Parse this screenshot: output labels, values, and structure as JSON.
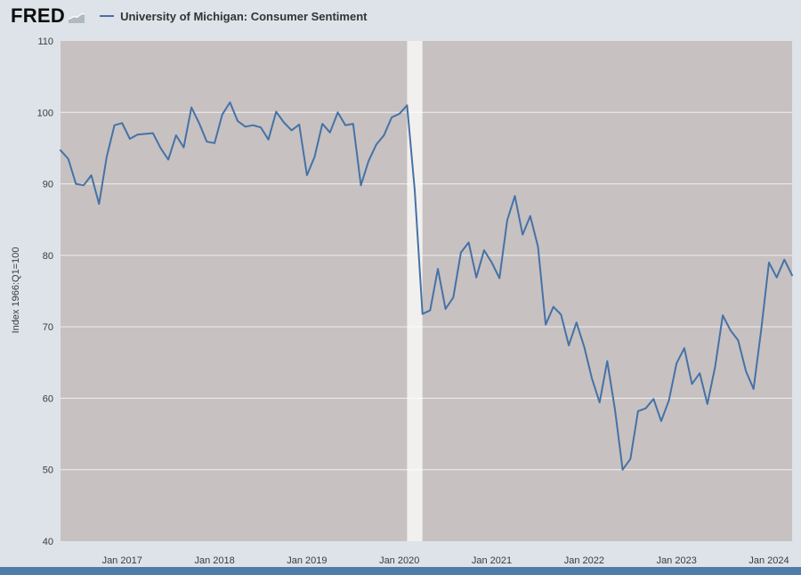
{
  "header": {
    "logo_text": "FRED",
    "legend": {
      "series_label": "University of Michigan: Consumer Sentiment"
    }
  },
  "chart_data": {
    "type": "line",
    "title": "University of Michigan: Consumer Sentiment",
    "xlabel": "",
    "ylabel": "Index 1966:Q1=100",
    "ylim": [
      40,
      110
    ],
    "yticks": [
      40,
      50,
      60,
      70,
      80,
      90,
      100,
      110
    ],
    "grid": "horizontal white gridlines on gray plot background",
    "legend_position": "top-left header",
    "frequency": "monthly",
    "start_month": "2016-05",
    "xticks": [
      {
        "label": "Jan 2017",
        "month": "2017-01"
      },
      {
        "label": "Jan 2018",
        "month": "2018-01"
      },
      {
        "label": "Jan 2019",
        "month": "2019-01"
      },
      {
        "label": "Jan 2020",
        "month": "2020-01"
      },
      {
        "label": "Jan 2021",
        "month": "2021-01"
      },
      {
        "label": "Jan 2022",
        "month": "2022-01"
      },
      {
        "label": "Jan 2023",
        "month": "2023-01"
      },
      {
        "label": "Jan 2024",
        "month": "2024-01"
      }
    ],
    "recession_bands": [
      {
        "from": "2020-02",
        "to": "2020-04"
      }
    ],
    "series": [
      {
        "name": "University of Michigan: Consumer Sentiment",
        "values": [
          94.7,
          93.5,
          90.0,
          89.8,
          91.2,
          87.2,
          93.8,
          98.2,
          98.5,
          96.3,
          96.9,
          97.0,
          97.1,
          95.0,
          93.4,
          96.8,
          95.1,
          100.7,
          98.5,
          95.9,
          95.7,
          99.7,
          101.4,
          98.8,
          98.0,
          98.2,
          97.9,
          96.2,
          100.1,
          98.6,
          97.5,
          98.3,
          91.2,
          93.8,
          98.4,
          97.2,
          100.0,
          98.2,
          98.4,
          89.8,
          93.2,
          95.5,
          96.8,
          99.3,
          99.8,
          101.0,
          89.1,
          71.8,
          72.3,
          78.1,
          72.5,
          74.1,
          80.4,
          81.8,
          76.9,
          80.7,
          79.0,
          76.8,
          84.9,
          88.3,
          82.9,
          85.5,
          81.2,
          70.3,
          72.8,
          71.7,
          67.4,
          70.6,
          67.2,
          62.8,
          59.4,
          65.2,
          58.4,
          50.0,
          51.5,
          58.2,
          58.6,
          59.9,
          56.8,
          59.7,
          64.9,
          67.0,
          62.0,
          63.5,
          59.2,
          64.4,
          71.6,
          69.5,
          68.1,
          63.8,
          61.3,
          69.7,
          79.0,
          76.9,
          79.4,
          77.2
        ]
      }
    ],
    "colors": {
      "line": "#4572a7",
      "plot_bg": "#c7c1c1",
      "band": "#f2f0ee",
      "page_bg": "#dde3e9",
      "footer_bar": "#4f7ca8",
      "gridline": "rgba(255,255,255,0.75)"
    }
  }
}
